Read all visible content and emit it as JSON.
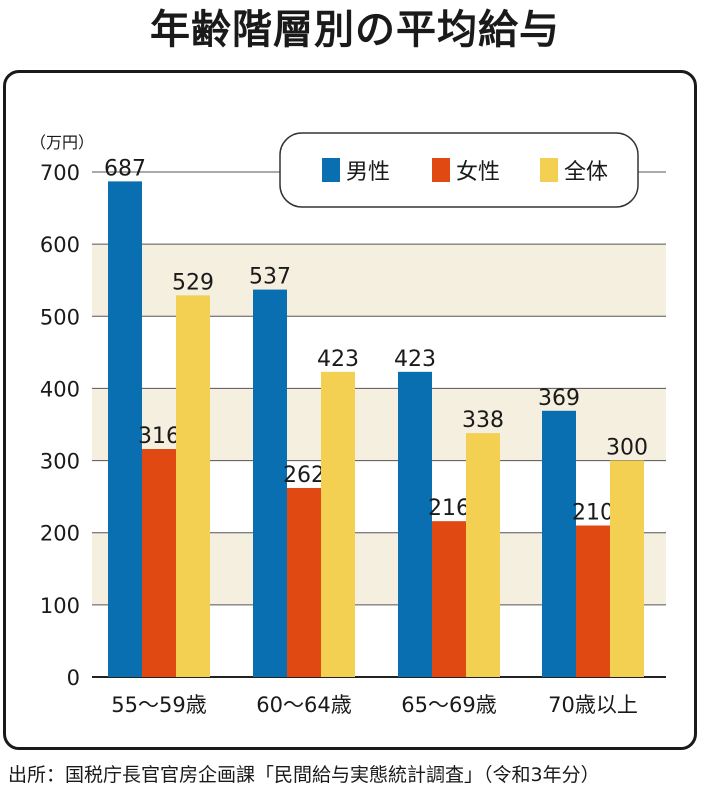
{
  "title": "年齢階層別の平均給与",
  "source": "出所：国税庁長官官房企画課「民間給与実態統計調査」（令和3年分）",
  "chart_data": {
    "type": "bar",
    "unit": "（万円）",
    "categories": [
      "55〜59歳",
      "60〜64歳",
      "65〜69歳",
      "70歳以上"
    ],
    "series": [
      {
        "name": "男性",
        "color": "#0a6fb0",
        "values": [
          687,
          537,
          423,
          369
        ]
      },
      {
        "name": "女性",
        "color": "#e04a12",
        "values": [
          316,
          262,
          216,
          210
        ]
      },
      {
        "name": "全体",
        "color": "#f3cf52",
        "values": [
          529,
          423,
          338,
          300
        ]
      }
    ],
    "ylim": [
      0,
      700
    ],
    "yticks": [
      0,
      100,
      200,
      300,
      400,
      500,
      600,
      700
    ],
    "grid": true,
    "band_color": "#f5efe0",
    "legend_position": "top-right"
  }
}
